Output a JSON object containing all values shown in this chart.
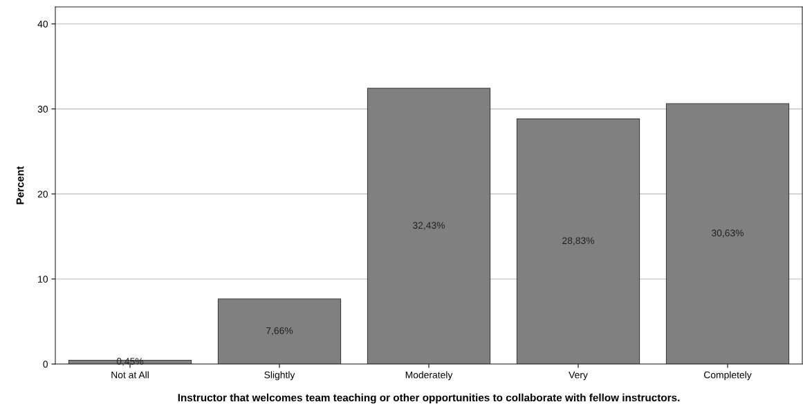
{
  "chart_data": {
    "type": "bar",
    "xlabel": "Instructor that welcomes team teaching or other opportunities to collaborate with fellow instructors.",
    "ylabel": "Percent",
    "categories": [
      "Not at All",
      "Slightly",
      "Moderately",
      "Very",
      "Completely"
    ],
    "values": [
      0.45,
      7.66,
      32.43,
      28.83,
      30.63
    ],
    "value_labels": [
      "0,45%",
      "7,66%",
      "32,43%",
      "28,83%",
      "30,63%"
    ],
    "color": "#808080",
    "ylim": [
      0,
      42
    ],
    "yticks": [
      0,
      10,
      20,
      30,
      40
    ],
    "grid": "y",
    "legend": false
  }
}
